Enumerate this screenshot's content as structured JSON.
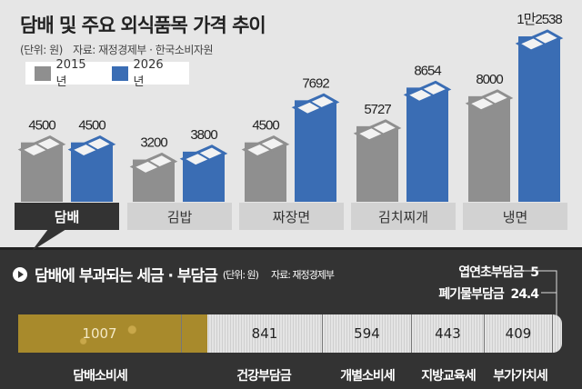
{
  "title": "담배 및 주요 외식품목 가격 추이",
  "unit": "(단위: 원)",
  "source": "자료: 재정경제부 · 한국소비자원",
  "colors": {
    "y2015": "#8f8f8f",
    "y2026": "#3a6db4"
  },
  "chart_data": {
    "type": "bar",
    "title": "담배 및 주요 외식품목 가격 추이",
    "categories": [
      "담배",
      "김밥",
      "짜장면",
      "김치찌개",
      "냉면"
    ],
    "series": [
      {
        "name": "2015년",
        "values": [
          4500,
          3200,
          4500,
          5727,
          8000
        ],
        "labels": [
          "4500",
          "3200",
          "4500",
          "5727",
          "8000"
        ]
      },
      {
        "name": "2026년",
        "values": [
          4500,
          3800,
          7692,
          8654,
          12538
        ],
        "labels": [
          "4500",
          "3800",
          "7692",
          "8654",
          "1만2538"
        ]
      }
    ],
    "ylim": [
      0,
      12538
    ],
    "highlighted_category": "담배"
  },
  "tax": {
    "title": "담배에 부과되는 세금 · 부담금",
    "unit": "(단위: 원)",
    "source": "자료: 재정경제부",
    "segments": [
      {
        "name": "담배소비세",
        "value": "1007"
      },
      {
        "name": "건강부담금",
        "value": "841"
      },
      {
        "name": "개별소비세",
        "value": "594"
      },
      {
        "name": "지방교육세",
        "value": "443"
      },
      {
        "name": "부가가치세",
        "value": "409"
      }
    ],
    "extras": [
      {
        "name": "엽연초부담금",
        "value": "5"
      },
      {
        "name": "폐기물부담금",
        "value": "24.4"
      }
    ]
  }
}
